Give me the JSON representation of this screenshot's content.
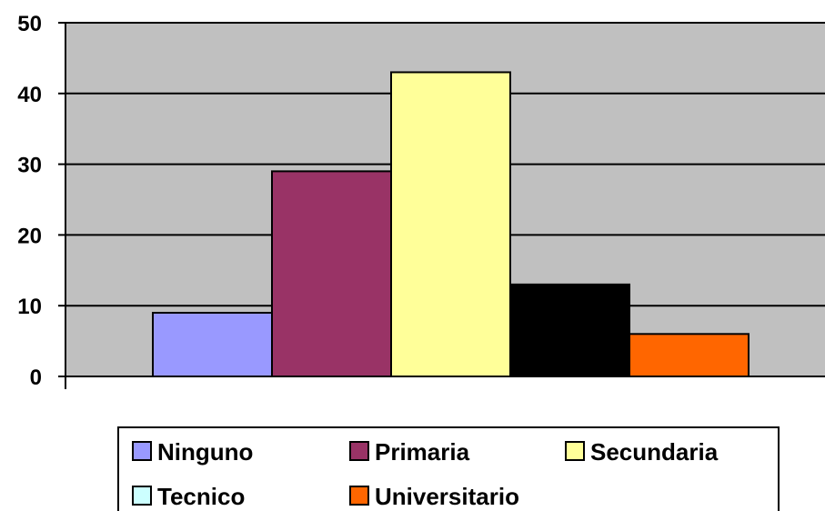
{
  "chart_data": {
    "type": "bar",
    "title": "",
    "xlabel": "",
    "ylabel": "",
    "ylim": [
      0,
      50
    ],
    "yticks": [
      "0",
      "10",
      "20",
      "30",
      "40",
      "50"
    ],
    "grid": true,
    "legend_position": "bottom",
    "series": [
      {
        "name": "Ninguno",
        "value": 9,
        "color": "#9999FF"
      },
      {
        "name": "Primaria",
        "value": 29,
        "color": "#993366"
      },
      {
        "name": "Secundaria",
        "value": 43,
        "color": "#FFFF99"
      },
      {
        "name": "Tecnico",
        "value": 13,
        "color": "#000000",
        "legend_color": "#CCFFFF"
      },
      {
        "name": "Universitario",
        "value": 6,
        "color": "#FF6600"
      }
    ],
    "plot_background": "#C0C0C0"
  }
}
